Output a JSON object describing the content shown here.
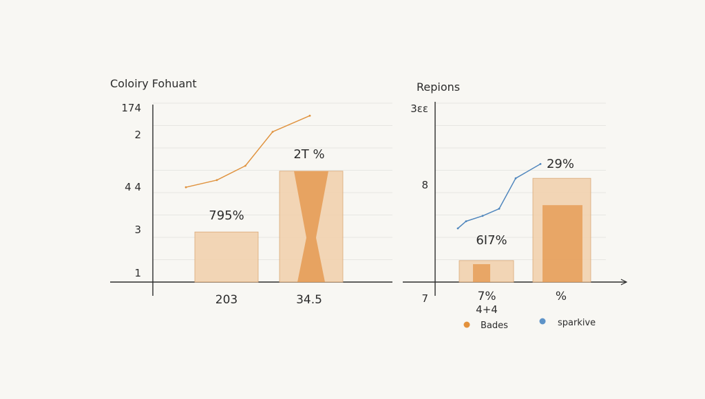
{
  "colors": {
    "bar_outer": "#f1cfa9",
    "bar_inner": "#e59a52",
    "line_orange": "#e0933f",
    "line_blue": "#4f86bd",
    "legend_orange": "#e3913c",
    "legend_blue": "#5e93c8",
    "ink": "#2b2b2b",
    "grid": "#e6e6e2"
  },
  "chart_data": [
    {
      "type": "bar",
      "title": "Coloiry Fohuant",
      "y_tick_labels": [
        "174",
        "2",
        "4 4",
        "3",
        "1"
      ],
      "categories": [
        "203",
        "34.5"
      ],
      "series": [
        {
          "values": [
            0.28,
            0.62
          ]
        },
        {
          "values": [
            null,
            0.62
          ]
        }
      ],
      "data_labels": [
        "795%",
        "2T %"
      ],
      "line": {
        "x": [
          0,
          0.25,
          0.48,
          0.7,
          1.0
        ],
        "y": [
          0.53,
          0.57,
          0.65,
          0.84,
          0.93
        ]
      },
      "ylim": [
        0,
        1
      ],
      "grid": true
    },
    {
      "type": "bar",
      "title": "Repions",
      "y_tick_labels": [
        "3ɛɛ",
        "8",
        "7"
      ],
      "categories": [
        "7%",
        "%"
      ],
      "category_sublabels": [
        "4+4",
        ""
      ],
      "series": [
        {
          "values": [
            0.12,
            0.58
          ]
        },
        {
          "values": [
            0.1,
            0.43
          ]
        }
      ],
      "data_labels": [
        "6I7%",
        "29%"
      ],
      "line": {
        "x": [
          0,
          0.1,
          0.3,
          0.5,
          0.7,
          1.0
        ],
        "y": [
          0.3,
          0.34,
          0.37,
          0.41,
          0.58,
          0.66
        ]
      },
      "ylim": [
        0,
        1
      ],
      "grid": true,
      "legend": {
        "position": "bottom",
        "items": [
          {
            "name": "Bades",
            "color": "#e3913c"
          },
          {
            "name": "sparkive",
            "color": "#5e93c8"
          }
        ]
      }
    }
  ]
}
